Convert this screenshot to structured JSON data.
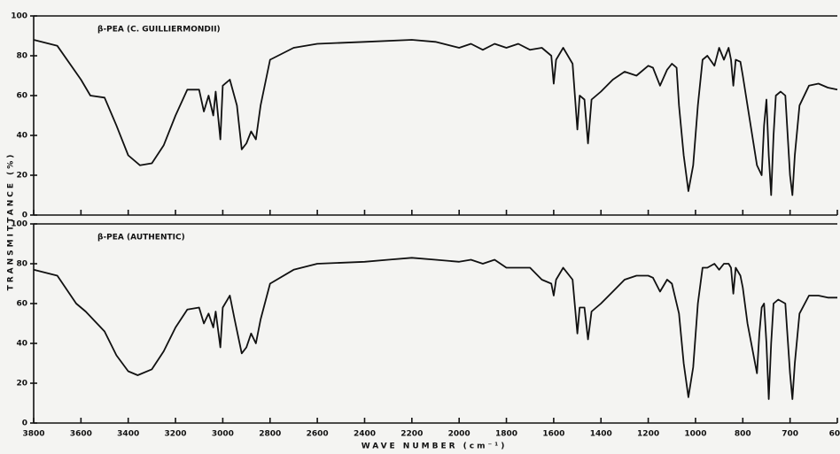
{
  "chart_data": [
    {
      "type": "line",
      "title": "β-PEA (C. GUILLIERMONDII)",
      "ylabel": "TRANSMITTANCE (%)",
      "color": "#111111",
      "ylim": [
        0,
        100
      ],
      "yticks": [
        0,
        20,
        40,
        60,
        80,
        100
      ],
      "x": [
        3800,
        3700,
        3600,
        3560,
        3500,
        3450,
        3400,
        3350,
        3300,
        3250,
        3200,
        3150,
        3100,
        3080,
        3060,
        3040,
        3030,
        3010,
        3000,
        2970,
        2940,
        2920,
        2900,
        2880,
        2860,
        2840,
        2800,
        2700,
        2600,
        2400,
        2200,
        2100,
        2000,
        1950,
        1900,
        1850,
        1800,
        1750,
        1700,
        1650,
        1610,
        1600,
        1590,
        1560,
        1520,
        1500,
        1490,
        1470,
        1455,
        1440,
        1400,
        1350,
        1300,
        1250,
        1200,
        1180,
        1150,
        1120,
        1100,
        1080,
        1070,
        1050,
        1030,
        1010,
        990,
        970,
        950,
        920,
        900,
        880,
        860,
        850,
        840,
        830,
        810,
        800,
        790,
        770,
        760,
        755,
        750,
        745,
        740,
        735,
        730,
        720,
        710,
        700,
        695,
        690,
        680,
        660,
        640,
        620,
        600
      ],
      "values": [
        88,
        85,
        68,
        60,
        59,
        45,
        30,
        25,
        26,
        35,
        50,
        63,
        63,
        52,
        60,
        50,
        62,
        38,
        65,
        68,
        55,
        33,
        36,
        42,
        38,
        55,
        78,
        84,
        86,
        87,
        88,
        87,
        84,
        86,
        83,
        86,
        84,
        86,
        83,
        84,
        80,
        66,
        78,
        84,
        76,
        43,
        60,
        58,
        36,
        58,
        62,
        68,
        72,
        70,
        75,
        74,
        65,
        73,
        76,
        74,
        55,
        30,
        12,
        25,
        55,
        78,
        80,
        75,
        84,
        78,
        84,
        78,
        65,
        78,
        77,
        70,
        55,
        25,
        20,
        45,
        58,
        30,
        10,
        40,
        60,
        62,
        60,
        20,
        10,
        30,
        55,
        65,
        66,
        64,
        63
      ]
    },
    {
      "type": "line",
      "title": "β-PEA (AUTHENTIC)",
      "xlabel": "WAVE NUMBER (cm⁻¹)",
      "color": "#111111",
      "ylim": [
        0,
        100
      ],
      "yticks": [
        0,
        20,
        40,
        60,
        80,
        100
      ],
      "xlim": [
        3800,
        600
      ],
      "xticks": [
        3800,
        3600,
        3400,
        3200,
        3000,
        2800,
        2600,
        2400,
        2200,
        2000,
        1800,
        1600,
        1400,
        1200,
        1000,
        800,
        700,
        600
      ],
      "x": [
        3800,
        3700,
        3620,
        3580,
        3500,
        3450,
        3400,
        3360,
        3300,
        3250,
        3200,
        3150,
        3100,
        3080,
        3060,
        3040,
        3030,
        3010,
        3000,
        2970,
        2950,
        2920,
        2900,
        2880,
        2860,
        2840,
        2800,
        2700,
        2600,
        2400,
        2300,
        2200,
        2100,
        2000,
        1950,
        1900,
        1850,
        1800,
        1700,
        1650,
        1610,
        1600,
        1590,
        1560,
        1520,
        1500,
        1490,
        1470,
        1455,
        1440,
        1400,
        1350,
        1300,
        1250,
        1200,
        1180,
        1150,
        1120,
        1100,
        1070,
        1050,
        1030,
        1010,
        990,
        970,
        950,
        920,
        900,
        880,
        860,
        850,
        840,
        830,
        810,
        800,
        790,
        770,
        765,
        760,
        755,
        750,
        745,
        740,
        735,
        725,
        710,
        700,
        695,
        690,
        680,
        660,
        640,
        620,
        600
      ],
      "values": [
        77,
        74,
        60,
        56,
        46,
        34,
        26,
        24,
        27,
        36,
        48,
        57,
        58,
        50,
        55,
        48,
        56,
        38,
        58,
        64,
        52,
        35,
        38,
        45,
        40,
        52,
        70,
        77,
        80,
        81,
        82,
        83,
        82,
        81,
        82,
        80,
        82,
        78,
        78,
        72,
        70,
        64,
        72,
        78,
        72,
        45,
        58,
        58,
        42,
        56,
        60,
        66,
        72,
        74,
        74,
        73,
        66,
        72,
        70,
        55,
        30,
        13,
        28,
        60,
        78,
        78,
        80,
        77,
        80,
        80,
        78,
        65,
        78,
        74,
        68,
        50,
        25,
        45,
        58,
        60,
        40,
        12,
        40,
        60,
        62,
        60,
        25,
        12,
        30,
        55,
        64,
        64,
        63,
        63
      ]
    }
  ]
}
